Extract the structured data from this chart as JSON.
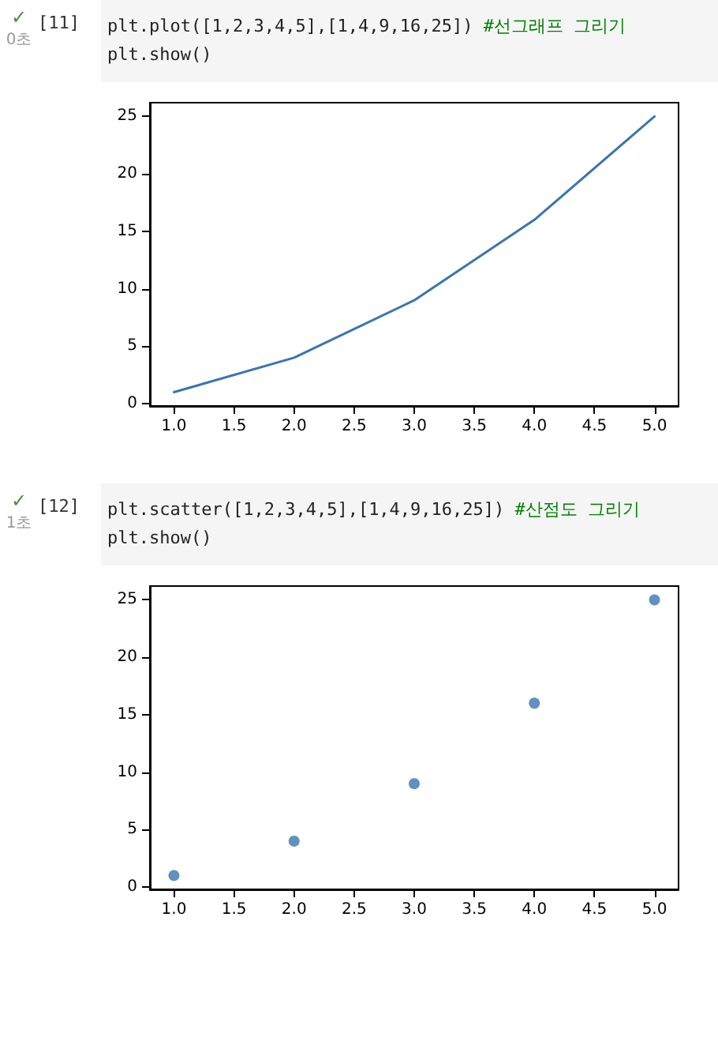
{
  "chart_data": [
    {
      "type": "line",
      "annotations": [
        "✓",
        "0초",
        "[11]",
        "plt.plot([1,2,3,4,5],[1,4,9,16,25]) #선그래프 그리기",
        "plt.show()"
      ],
      "x": [
        1,
        2,
        3,
        4,
        5
      ],
      "series": [
        {
          "color": "#3a75b0",
          "values": [
            1,
            4,
            9,
            16,
            25
          ]
        }
      ],
      "xlim": [
        0.8,
        5.2
      ],
      "xticks": [
        {
          "value": 1,
          "label": "1.0"
        },
        {
          "value": 1.5,
          "label": "1.5"
        },
        {
          "value": 2,
          "label": "2.0"
        },
        {
          "value": 2.5,
          "label": "2.5"
        },
        {
          "value": 3,
          "label": "3.0"
        },
        {
          "value": 3.5,
          "label": "3.5"
        },
        {
          "value": 4,
          "label": "4.0"
        },
        {
          "value": 4.5,
          "label": "4.5"
        },
        {
          "value": 5,
          "label": "5.0"
        }
      ],
      "ylim": [
        -0.2,
        26.2
      ],
      "yticks": [
        0,
        5,
        10,
        15,
        20,
        25
      ],
      "marker": "none",
      "line_style": "solid",
      "grid": false
    },
    {
      "type": "scatter",
      "annotations": [
        "✓",
        "1초",
        "[12]",
        "plt.scatter([1,2,3,4,5],[1,4,9,16,25]) #산점도 그리기",
        "plt.show()"
      ],
      "x": [
        1,
        2,
        3,
        4,
        5
      ],
      "series": [
        {
          "color": "#3a75b0",
          "values": [
            1,
            4,
            9,
            16,
            25
          ]
        }
      ],
      "xlim": [
        0.8,
        5.2
      ],
      "xticks": [
        {
          "value": 1,
          "label": "1.0"
        },
        {
          "value": 1.5,
          "label": "1.5"
        },
        {
          "value": 2,
          "label": "2.0"
        },
        {
          "value": 2.5,
          "label": "2.5"
        },
        {
          "value": 3,
          "label": "3.0"
        },
        {
          "value": 3.5,
          "label": "3.5"
        },
        {
          "value": 4,
          "label": "4.0"
        },
        {
          "value": 4.5,
          "label": "4.5"
        },
        {
          "value": 5,
          "label": "5.0"
        }
      ],
      "ylim": [
        -0.2,
        26.2
      ],
      "yticks": [
        0,
        5,
        10,
        15,
        20,
        25
      ],
      "marker": "circle",
      "grid": false
    }
  ]
}
